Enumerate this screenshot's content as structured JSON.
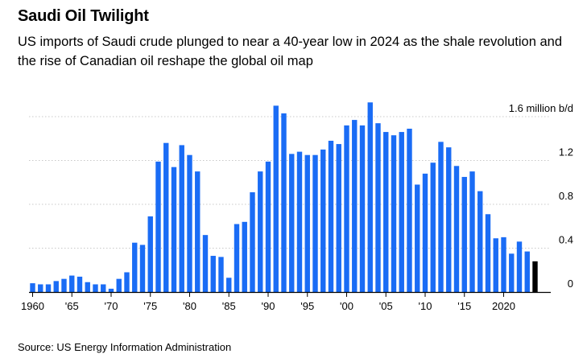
{
  "header": {
    "title": "Saudi Oil Twilight",
    "subtitle": "US imports of Saudi crude plunged to near a 40-year low in 2024 as the shale revolution and the rise of Canadian oil reshape the global oil map"
  },
  "footer": {
    "source": "Source: US Energy Information Administration"
  },
  "colors": {
    "bar": "#1a6cf5",
    "highlight": "#000000",
    "grid": "#c8c8c8",
    "axis": "#000000"
  },
  "chart_data": {
    "type": "bar",
    "title": "Saudi Oil Twilight",
    "xlabel": "",
    "ylabel": "million b/d",
    "ylim": [
      0,
      1.6
    ],
    "yticks": [
      0,
      0.4,
      0.8,
      1.2,
      1.6
    ],
    "ytick_labels": [
      "0",
      "0.4",
      "0.8",
      "1.2",
      "1.6 million b/d"
    ],
    "xtick_years": [
      1960,
      1965,
      1970,
      1975,
      1980,
      1985,
      1990,
      1995,
      2000,
      2005,
      2010,
      2015,
      2020
    ],
    "xtick_labels": [
      "1960",
      "'65",
      "'70",
      "'75",
      "'80",
      "'85",
      "'90",
      "'95",
      "'00",
      "'05",
      "'10",
      "'15",
      "2020"
    ],
    "highlight_year": 2024,
    "categories": [
      1960,
      1961,
      1962,
      1963,
      1964,
      1965,
      1966,
      1967,
      1968,
      1969,
      1970,
      1971,
      1972,
      1973,
      1974,
      1975,
      1976,
      1977,
      1978,
      1979,
      1980,
      1981,
      1982,
      1983,
      1984,
      1985,
      1986,
      1987,
      1988,
      1989,
      1990,
      1991,
      1992,
      1993,
      1994,
      1995,
      1996,
      1997,
      1998,
      1999,
      2000,
      2001,
      2002,
      2003,
      2004,
      2005,
      2006,
      2007,
      2008,
      2009,
      2010,
      2011,
      2012,
      2013,
      2014,
      2015,
      2016,
      2017,
      2018,
      2019,
      2020,
      2021,
      2022,
      2023,
      2024
    ],
    "values": [
      0.08,
      0.07,
      0.07,
      0.1,
      0.12,
      0.15,
      0.14,
      0.09,
      0.07,
      0.07,
      0.03,
      0.12,
      0.18,
      0.45,
      0.43,
      0.69,
      1.19,
      1.36,
      1.14,
      1.34,
      1.25,
      1.1,
      0.52,
      0.33,
      0.32,
      0.13,
      0.62,
      0.64,
      0.91,
      1.1,
      1.19,
      1.7,
      1.63,
      1.26,
      1.28,
      1.25,
      1.25,
      1.3,
      1.38,
      1.35,
      1.52,
      1.57,
      1.52,
      1.73,
      1.54,
      1.46,
      1.43,
      1.46,
      1.49,
      0.98,
      1.08,
      1.18,
      1.37,
      1.32,
      1.15,
      1.05,
      1.1,
      0.92,
      0.71,
      0.49,
      0.5,
      0.35,
      0.46,
      0.37,
      0.28
    ]
  }
}
